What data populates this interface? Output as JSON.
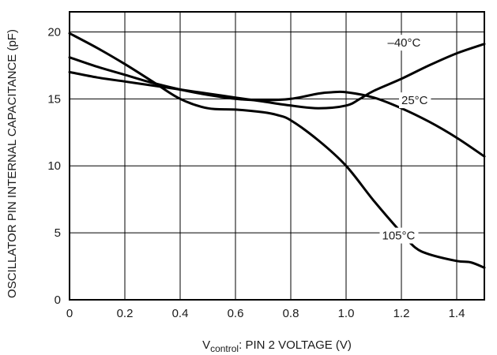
{
  "chart_data": {
    "type": "line",
    "title": "",
    "xlabel_main": "V",
    "xlabel_sub": "control",
    "xlabel_rest": ": PIN 2 VOLTAGE (V)",
    "ylabel": "OSCILLATOR PIN INTERNAL CAPACITANCE (pF)",
    "xlim": [
      0,
      1.5
    ],
    "ylim": [
      0,
      21.5
    ],
    "grid": true,
    "x_ticks": [
      0,
      0.2,
      0.4,
      0.6,
      0.8,
      1.0,
      1.2,
      1.4
    ],
    "x_tick_labels": [
      "0",
      "0.2",
      "0.4",
      "0.6",
      "0.8",
      "1.0",
      "1.2",
      "1.4"
    ],
    "y_ticks": [
      0,
      5,
      10,
      15,
      20
    ],
    "y_tick_labels": [
      "0",
      "5",
      "10",
      "15",
      "20"
    ],
    "series": [
      {
        "name": "–40°C",
        "x": [
          0,
          0.1,
          0.2,
          0.3,
          0.4,
          0.5,
          0.6,
          0.7,
          0.8,
          0.9,
          1.0,
          1.05,
          1.1,
          1.2,
          1.3,
          1.4,
          1.5
        ],
        "y": [
          17.0,
          16.6,
          16.3,
          16.0,
          15.7,
          15.4,
          15.1,
          14.8,
          14.5,
          14.3,
          14.5,
          15.0,
          15.6,
          16.5,
          17.5,
          18.4,
          19.1
        ]
      },
      {
        "name": "25°C",
        "x": [
          0,
          0.1,
          0.2,
          0.3,
          0.4,
          0.5,
          0.6,
          0.7,
          0.8,
          0.9,
          0.95,
          1.0,
          1.1,
          1.2,
          1.3,
          1.4,
          1.5
        ],
        "y": [
          18.1,
          17.4,
          16.8,
          16.2,
          15.7,
          15.3,
          15.0,
          14.9,
          15.0,
          15.4,
          15.5,
          15.5,
          15.1,
          14.3,
          13.3,
          12.1,
          10.7
        ]
      },
      {
        "name": "105°C",
        "x": [
          0,
          0.1,
          0.2,
          0.3,
          0.4,
          0.5,
          0.6,
          0.7,
          0.75,
          0.8,
          0.9,
          1.0,
          1.1,
          1.2,
          1.25,
          1.3,
          1.4,
          1.45,
          1.5
        ],
        "y": [
          19.9,
          18.8,
          17.6,
          16.3,
          15.0,
          14.3,
          14.2,
          14.0,
          13.8,
          13.4,
          11.9,
          10.0,
          7.4,
          5.0,
          3.9,
          3.4,
          2.9,
          2.8,
          2.4
        ]
      }
    ],
    "annotations": [
      {
        "text": "–40°C",
        "x": 1.15,
        "y": 18.9
      },
      {
        "text": "25°C",
        "x": 1.2,
        "y": 14.6
      },
      {
        "text": "105°C",
        "x": 1.13,
        "y": 4.5
      }
    ]
  }
}
